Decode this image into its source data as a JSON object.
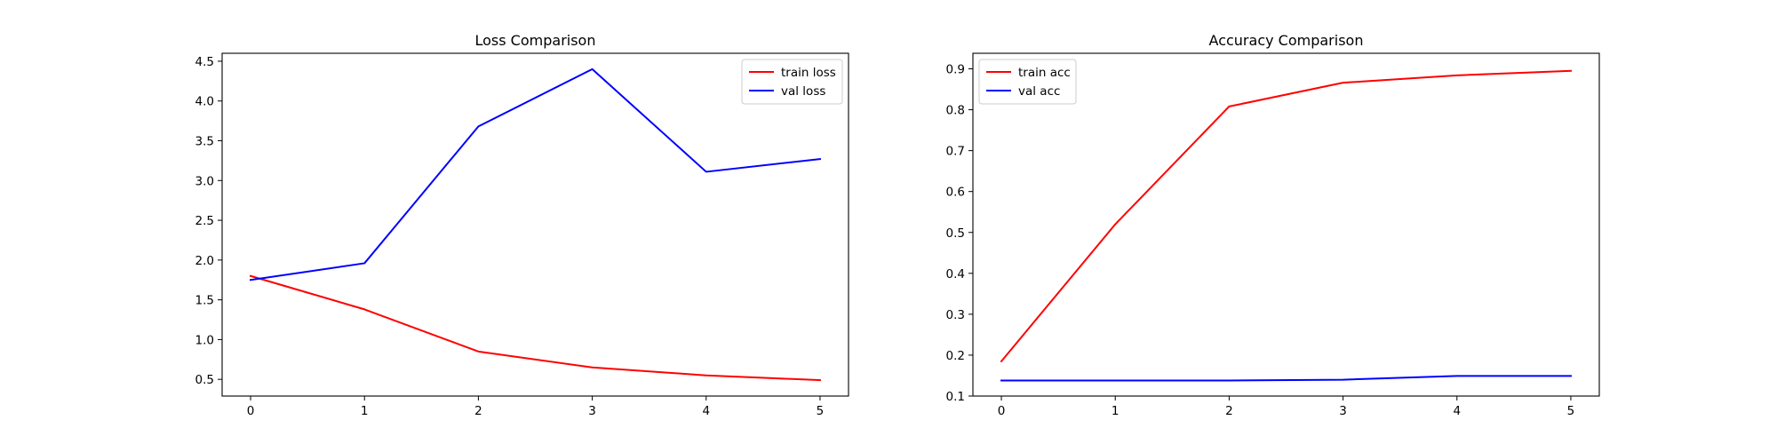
{
  "chart_data": [
    {
      "type": "line",
      "title": "Loss Comparison",
      "xlabel": "",
      "ylabel": "",
      "x": [
        0,
        1,
        2,
        3,
        4,
        5
      ],
      "xlim": [
        -0.25,
        5.25
      ],
      "ylim": [
        0.29,
        4.6
      ],
      "xticks": [
        0,
        1,
        2,
        3,
        4,
        5
      ],
      "yticks": [
        0.5,
        1.0,
        1.5,
        2.0,
        2.5,
        3.0,
        3.5,
        4.0,
        4.5
      ],
      "ytick_labels": [
        "0.5",
        "1.0",
        "1.5",
        "2.0",
        "2.5",
        "3.0",
        "3.5",
        "4.0",
        "4.5"
      ],
      "grid": false,
      "legend_position": "upper-right",
      "series": [
        {
          "name": "train loss",
          "color": "#ff0000",
          "values": [
            1.8,
            1.38,
            0.85,
            0.65,
            0.55,
            0.49
          ]
        },
        {
          "name": "val loss",
          "color": "#0000ff",
          "values": [
            1.75,
            1.96,
            3.68,
            4.4,
            3.11,
            3.27
          ]
        }
      ]
    },
    {
      "type": "line",
      "title": "Accuracy Comparison",
      "xlabel": "",
      "ylabel": "",
      "x": [
        0,
        1,
        2,
        3,
        4,
        5
      ],
      "xlim": [
        -0.25,
        5.25
      ],
      "ylim": [
        0.1,
        0.938
      ],
      "xticks": [
        0,
        1,
        2,
        3,
        4,
        5
      ],
      "yticks": [
        0.1,
        0.2,
        0.3,
        0.4,
        0.5,
        0.6,
        0.7,
        0.8,
        0.9
      ],
      "ytick_labels": [
        "0.1",
        "0.2",
        "0.3",
        "0.4",
        "0.5",
        "0.6",
        "0.7",
        "0.8",
        "0.9"
      ],
      "grid": false,
      "legend_position": "upper-left",
      "series": [
        {
          "name": "train acc",
          "color": "#ff0000",
          "values": [
            0.185,
            0.52,
            0.808,
            0.866,
            0.884,
            0.895
          ]
        },
        {
          "name": "val acc",
          "color": "#0000ff",
          "values": [
            0.138,
            0.138,
            0.138,
            0.14,
            0.149,
            0.149
          ]
        }
      ]
    }
  ]
}
